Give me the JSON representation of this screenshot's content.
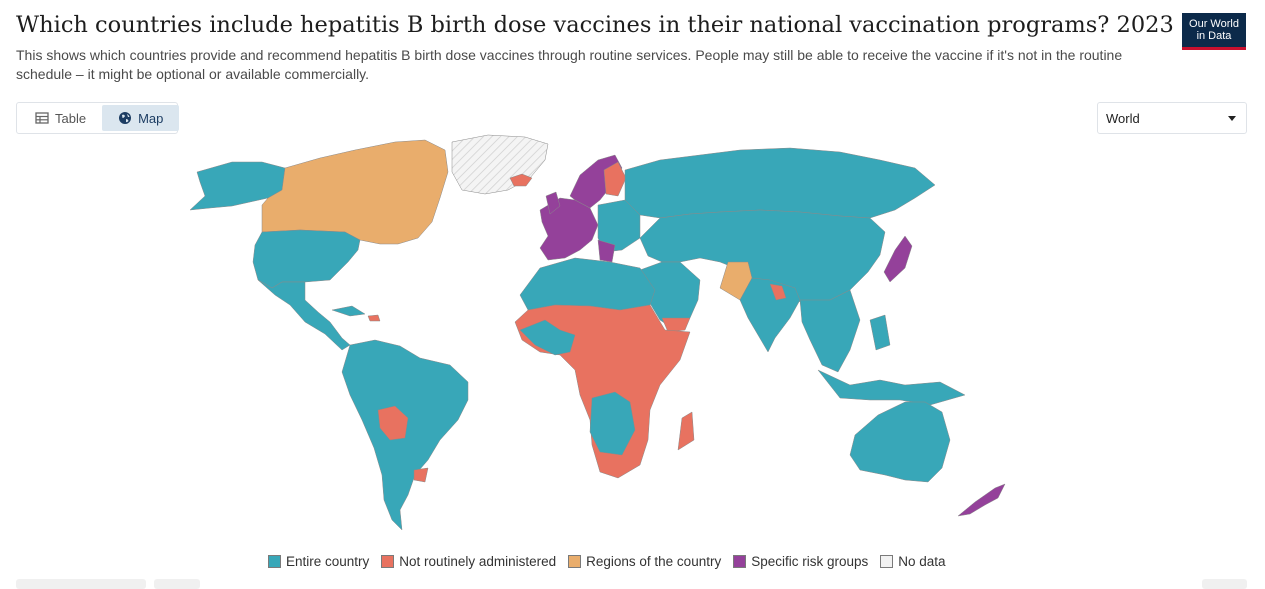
{
  "header": {
    "title": "Which countries include hepatitis B birth dose vaccines in their national vaccination programs? 2023",
    "subtitle": "This shows which countries provide and recommend hepatitis B birth dose vaccines through routine services. People may still be able to receive the vaccine if it's not in the routine schedule – it might be optional or available commercially.",
    "logo_line1": "Our World",
    "logo_line2": "in Data"
  },
  "tabs": [
    {
      "label": "Table",
      "icon": "table-icon",
      "active": false
    },
    {
      "label": "Map",
      "icon": "globe-icon",
      "active": true
    }
  ],
  "region_select": {
    "value": "World"
  },
  "colors": {
    "entire": "#38a7b8",
    "not_routine": "#e87260",
    "regions": "#e9ad6c",
    "risk": "#94419a",
    "nodata": "#f2f2f2"
  },
  "legend": [
    {
      "label": "Entire country",
      "color": "#38a7b8"
    },
    {
      "label": "Not routinely administered",
      "color": "#e87260"
    },
    {
      "label": "Regions of the country",
      "color": "#e9ad6c"
    },
    {
      "label": "Specific risk groups",
      "color": "#94419a"
    },
    {
      "label": "No data",
      "color": "#f2f2f2"
    }
  ]
}
